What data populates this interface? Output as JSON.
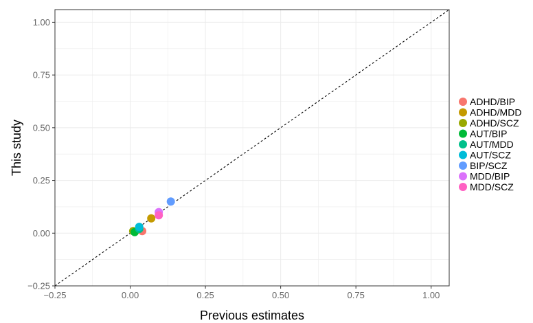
{
  "chart_data": {
    "type": "scatter",
    "title": "",
    "xlabel": "Previous estimates",
    "ylabel": "This study",
    "xlim": [
      -0.25,
      1.06
    ],
    "ylim": [
      -0.25,
      1.06
    ],
    "x_ticks": [
      -0.25,
      0.0,
      0.25,
      0.5,
      0.75,
      1.0
    ],
    "x_tick_labels": [
      "−0.25",
      "0.00",
      "0.25",
      "0.50",
      "0.75",
      "1.00"
    ],
    "y_ticks": [
      -0.25,
      0.0,
      0.25,
      0.5,
      0.75,
      1.0
    ],
    "y_tick_labels": [
      "−0.25",
      "0.00",
      "0.25",
      "0.50",
      "0.75",
      "1.00"
    ],
    "grid": true,
    "reference_line": "y = x (dashed)",
    "legend_position": "right",
    "series": [
      {
        "name": "ADHD/BIP",
        "color": "#F8766D",
        "x": 0.04,
        "y": 0.01
      },
      {
        "name": "ADHD/MDD",
        "color": "#C49A00",
        "x": 0.07,
        "y": 0.07
      },
      {
        "name": "ADHD/SCZ",
        "color": "#99A800",
        "x": 0.01,
        "y": 0.01
      },
      {
        "name": "AUT/BIP",
        "color": "#00BA38",
        "x": 0.015,
        "y": 0.005
      },
      {
        "name": "AUT/MDD",
        "color": "#00C08B",
        "x": 0.03,
        "y": 0.02
      },
      {
        "name": "AUT/SCZ",
        "color": "#00BCD8",
        "x": 0.03,
        "y": 0.03
      },
      {
        "name": "BIP/SCZ",
        "color": "#619CFF",
        "x": 0.135,
        "y": 0.15
      },
      {
        "name": "MDD/BIP",
        "color": "#DB72FB",
        "x": 0.095,
        "y": 0.1
      },
      {
        "name": "MDD/SCZ",
        "color": "#FF61C3",
        "x": 0.095,
        "y": 0.085
      }
    ]
  }
}
